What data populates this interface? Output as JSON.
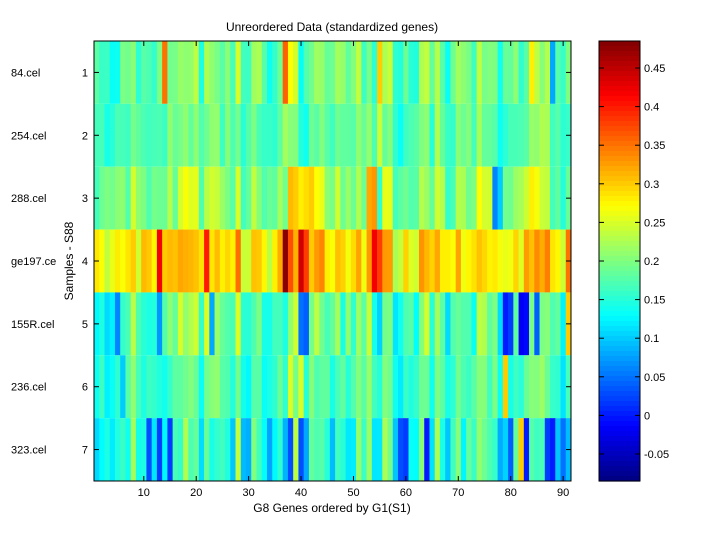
{
  "chart_data": {
    "type": "heatmap",
    "title": "Unreordered Data (standardized genes)",
    "xlabel": "G8 Genes ordered by G1(S1)",
    "ylabel": "Samples - S88",
    "xlim": [
      0.5,
      91.5
    ],
    "ylim": [
      0.5,
      7.5
    ],
    "x_ticks": [
      10,
      20,
      30,
      40,
      50,
      60,
      70,
      80,
      90
    ],
    "y_ticks": [
      1,
      2,
      3,
      4,
      5,
      6,
      7
    ],
    "sample_labels": [
      "84.cel",
      "254.cel",
      "288.cel",
      "ge197.ce",
      "155R.cel",
      "236.cel",
      "323.cel"
    ],
    "colorbar": {
      "min": -0.085,
      "max": 0.485,
      "ticks": [
        -0.05,
        0,
        0.05,
        0.1,
        0.15,
        0.2,
        0.25,
        0.3,
        0.35,
        0.4,
        0.45
      ],
      "colormap": "jet"
    },
    "values": {
      "1": {
        "base": 0.19,
        "amp": 0.07,
        "overrides": {
          "14": 0.35,
          "37": 0.36,
          "38": 0.27,
          "55": 0.3,
          "84": 0.28,
          "88": 0.08,
          "91": 0.2
        }
      },
      "2": {
        "base": 0.18,
        "amp": 0.05,
        "overrides": {
          "37": 0.22,
          "55": 0.24
        }
      },
      "3": {
        "base": 0.21,
        "amp": 0.07,
        "overrides": {
          "38": 0.31,
          "39": 0.3,
          "40": 0.28,
          "41": 0.29,
          "42": 0.3,
          "43": 0.27,
          "53": 0.32,
          "54": 0.33,
          "77": 0.06,
          "78": 0.1,
          "84": 0.28
        }
      },
      "4": {
        "base": 0.29,
        "amp": 0.07,
        "overrides": {
          "13": 0.42,
          "22": 0.4,
          "37": 0.48,
          "38": 0.37,
          "40": 0.44,
          "41": 0.38,
          "54": 0.42,
          "55": 0.38,
          "91": 0.35
        }
      },
      "5": {
        "base": 0.18,
        "amp": 0.09,
        "overrides": {
          "5": 0.06,
          "13": 0.07,
          "23": 0.08,
          "40": 0.05,
          "41": 0.04,
          "79": 0.0,
          "80": 0.02,
          "82": -0.02,
          "83": -0.01,
          "85": 0.04,
          "91": 0.3
        }
      },
      "6": {
        "base": 0.17,
        "amp": 0.06,
        "overrides": {
          "6": 0.1,
          "38": 0.25,
          "40": 0.25,
          "79": 0.3
        }
      },
      "7": {
        "base": 0.15,
        "amp": 0.09,
        "overrides": {
          "11": 0.03,
          "13": 0.02,
          "15": 0.02,
          "38": 0.03,
          "40": 0.03,
          "59": 0.03,
          "60": 0.02,
          "64": 0.0,
          "80": 0.04,
          "82": 0.3,
          "83": 0.0,
          "87": 0.02,
          "88": 0.0,
          "90": 0.05
        }
      }
    }
  }
}
